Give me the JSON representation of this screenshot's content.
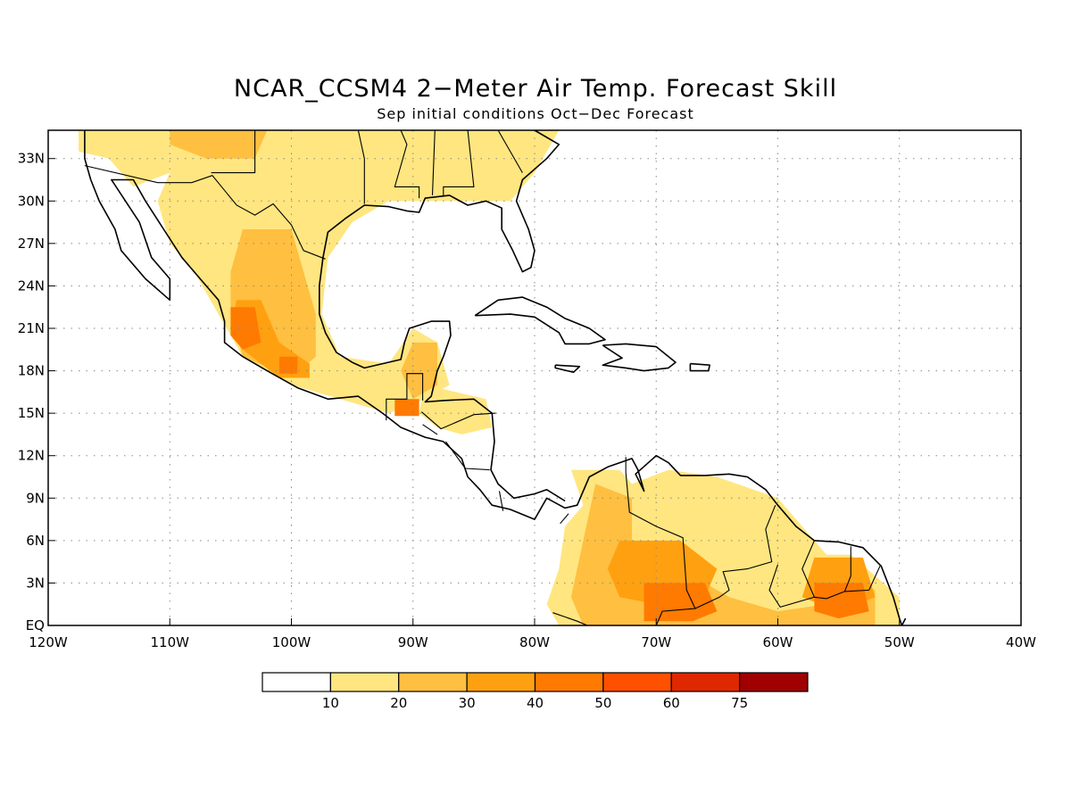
{
  "title": "NCAR_CCSM4 2−Meter Air Temp. Forecast Skill",
  "subtitle": "Sep initial conditions  Oct−Dec Forecast",
  "map": {
    "lon_range": [
      -120,
      -40
    ],
    "lat_range": [
      0,
      35
    ],
    "grid": true,
    "lon_ticks": [
      {
        "value": -120,
        "label": "120W"
      },
      {
        "value": -110,
        "label": "110W"
      },
      {
        "value": -100,
        "label": "100W"
      },
      {
        "value": -90,
        "label": "90W"
      },
      {
        "value": -80,
        "label": "80W"
      },
      {
        "value": -70,
        "label": "70W"
      },
      {
        "value": -60,
        "label": "60W"
      },
      {
        "value": -50,
        "label": "50W"
      },
      {
        "value": -40,
        "label": "40W"
      }
    ],
    "lat_ticks": [
      {
        "value": 33,
        "label": "33N"
      },
      {
        "value": 30,
        "label": "30N"
      },
      {
        "value": 27,
        "label": "27N"
      },
      {
        "value": 24,
        "label": "24N"
      },
      {
        "value": 21,
        "label": "21N"
      },
      {
        "value": 18,
        "label": "18N"
      },
      {
        "value": 15,
        "label": "15N"
      },
      {
        "value": 12,
        "label": "12N"
      },
      {
        "value": 9,
        "label": "9N"
      },
      {
        "value": 6,
        "label": "6N"
      },
      {
        "value": 3,
        "label": "3N"
      },
      {
        "value": 0,
        "label": "EQ"
      }
    ]
  },
  "colorbar": {
    "colors": [
      "#ffffff",
      "#ffe680",
      "#ffbf40",
      "#ffa010",
      "#ff7a00",
      "#ff5000",
      "#e02800",
      "#a00000"
    ],
    "labels": [
      "10",
      "20",
      "30",
      "40",
      "50",
      "60",
      "75"
    ]
  },
  "skill_regions": [
    {
      "level": 1,
      "points": [
        [
          -117.5,
          35
        ],
        [
          -110,
          35
        ],
        [
          -110,
          32
        ],
        [
          -113,
          31
        ],
        [
          -115,
          33
        ],
        [
          -117.5,
          33.5
        ]
      ]
    },
    {
      "level": 1,
      "points": [
        [
          -110,
          35
        ],
        [
          -78,
          35
        ],
        [
          -80,
          32
        ],
        [
          -82,
          30
        ],
        [
          -85,
          30
        ],
        [
          -88,
          30
        ],
        [
          -92,
          30
        ],
        [
          -95,
          28.5
        ],
        [
          -97,
          26
        ],
        [
          -97.5,
          22
        ],
        [
          -96,
          19
        ],
        [
          -92,
          18.5
        ],
        [
          -90,
          21
        ],
        [
          -88,
          20
        ],
        [
          -87,
          17
        ],
        [
          -89,
          16
        ],
        [
          -92,
          15
        ],
        [
          -96,
          16
        ],
        [
          -100,
          17
        ],
        [
          -104,
          19
        ],
        [
          -106,
          22
        ],
        [
          -108,
          25
        ],
        [
          -110,
          27
        ],
        [
          -111,
          30
        ],
        [
          -110,
          32
        ]
      ]
    },
    {
      "level": 1,
      "points": [
        [
          -89,
          17
        ],
        [
          -84,
          16
        ],
        [
          -83.5,
          14
        ],
        [
          -86,
          13.5
        ],
        [
          -88,
          14
        ],
        [
          -89.5,
          15
        ]
      ]
    },
    {
      "level": 1,
      "points": [
        [
          -77,
          11
        ],
        [
          -73,
          11
        ],
        [
          -72,
          10
        ],
        [
          -69,
          11
        ],
        [
          -65,
          10.5
        ],
        [
          -60,
          9
        ],
        [
          -57,
          6
        ],
        [
          -56,
          5
        ],
        [
          -54,
          5
        ],
        [
          -50,
          2
        ],
        [
          -50,
          0
        ],
        [
          -78,
          0
        ],
        [
          -79,
          1.5
        ],
        [
          -78,
          4
        ],
        [
          -77.5,
          7
        ],
        [
          -76,
          8.5
        ]
      ]
    },
    {
      "level": 2,
      "points": [
        [
          -110,
          35
        ],
        [
          -102,
          35
        ],
        [
          -103,
          33
        ],
        [
          -107,
          33
        ],
        [
          -110,
          34
        ]
      ]
    },
    {
      "level": 2,
      "points": [
        [
          -104,
          28
        ],
        [
          -100,
          28
        ],
        [
          -99,
          25
        ],
        [
          -98,
          22
        ],
        [
          -98,
          19
        ],
        [
          -100,
          17.5
        ],
        [
          -104,
          19
        ],
        [
          -105,
          22
        ],
        [
          -105,
          25
        ]
      ]
    },
    {
      "level": 2,
      "points": [
        [
          -90,
          20
        ],
        [
          -88,
          20
        ],
        [
          -88,
          17
        ],
        [
          -90,
          16
        ],
        [
          -91,
          18
        ]
      ]
    },
    {
      "level": 2,
      "points": [
        [
          -75,
          10
        ],
        [
          -72,
          9
        ],
        [
          -72,
          6
        ],
        [
          -70,
          4
        ],
        [
          -66,
          3
        ],
        [
          -64,
          2
        ],
        [
          -60,
          1
        ],
        [
          -56,
          1.5
        ],
        [
          -54,
          3.5
        ],
        [
          -52,
          2.5
        ],
        [
          -52,
          0
        ],
        [
          -76,
          0
        ],
        [
          -77,
          2
        ],
        [
          -76,
          6
        ]
      ]
    },
    {
      "level": 3,
      "points": [
        [
          -104.5,
          23
        ],
        [
          -102.5,
          23
        ],
        [
          -101,
          20
        ],
        [
          -98.5,
          18.5
        ],
        [
          -98.5,
          17.5
        ],
        [
          -101,
          17.5
        ],
        [
          -104,
          19.5
        ],
        [
          -105,
          21
        ]
      ]
    },
    {
      "level": 3,
      "points": [
        [
          -73,
          6
        ],
        [
          -68,
          6
        ],
        [
          -65,
          4
        ],
        [
          -66,
          2
        ],
        [
          -70,
          1.5
        ],
        [
          -73,
          2
        ],
        [
          -74,
          4
        ]
      ]
    },
    {
      "level": 3,
      "points": [
        [
          -57,
          4.8
        ],
        [
          -53,
          4.8
        ],
        [
          -52,
          2
        ],
        [
          -55,
          1
        ],
        [
          -58,
          2
        ]
      ]
    },
    {
      "level": 4,
      "points": [
        [
          -105,
          22.5
        ],
        [
          -103,
          22.5
        ],
        [
          -102.5,
          20
        ],
        [
          -104,
          19.5
        ],
        [
          -105,
          20.5
        ]
      ]
    },
    {
      "level": 4,
      "points": [
        [
          -101,
          19
        ],
        [
          -99.5,
          19
        ],
        [
          -99.5,
          17.8
        ],
        [
          -101,
          17.8
        ]
      ]
    },
    {
      "level": 4,
      "points": [
        [
          -91.5,
          16
        ],
        [
          -89.5,
          16
        ],
        [
          -89.5,
          14.8
        ],
        [
          -91.5,
          14.8
        ]
      ]
    },
    {
      "level": 4,
      "points": [
        [
          -71,
          3
        ],
        [
          -66,
          3
        ],
        [
          -65,
          1
        ],
        [
          -67,
          0.3
        ],
        [
          -71,
          0.3
        ]
      ]
    },
    {
      "level": 4,
      "points": [
        [
          -57,
          3
        ],
        [
          -53,
          3
        ],
        [
          -52.5,
          1
        ],
        [
          -55,
          0.5
        ],
        [
          -57,
          1
        ]
      ]
    }
  ]
}
